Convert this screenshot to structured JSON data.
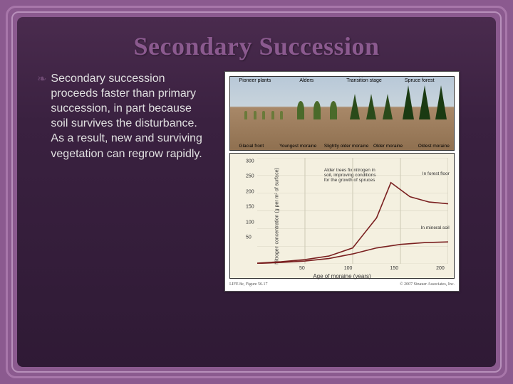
{
  "title": "Secondary Succession",
  "body_text": "Secondary succession proceeds faster than primary succession, in part because soil survives the disturbance. As a result, new and surviving vegetation can regrow rapidly.",
  "figure": {
    "top_panel": {
      "stages": [
        {
          "label": "Pioneer plants",
          "left_pct": 4
        },
        {
          "label": "Alders",
          "left_pct": 31
        },
        {
          "label": "Transition stage",
          "left_pct": 52
        },
        {
          "label": "Spruce forest",
          "left_pct": 78
        }
      ],
      "moraines": [
        {
          "label": "Glacial front",
          "left_pct": 4
        },
        {
          "label": "Youngest moraine",
          "left_pct": 22
        },
        {
          "label": "Slightly older moraine",
          "left_pct": 42
        },
        {
          "label": "Older moraine",
          "left_pct": 64
        },
        {
          "label": "Oldest moraine",
          "left_pct": 84
        }
      ]
    },
    "chart": {
      "type": "line",
      "y_label": "Nitrogen concentration (g per m² of surface)",
      "x_label": "Age of moraine (years)",
      "ylim": [
        0,
        300
      ],
      "y_ticks": [
        0,
        50,
        100,
        150,
        200,
        250,
        300
      ],
      "xlim": [
        0,
        200
      ],
      "x_ticks": [
        50,
        100,
        150,
        200
      ],
      "background_color": "#f4f0e0",
      "grid_color": "#d0ccb8",
      "line_color": "#7a2020",
      "line_width": 1.6,
      "series": [
        {
          "name": "forest_floor",
          "label": "In forest floor",
          "points": [
            [
              0,
              2
            ],
            [
              25,
              6
            ],
            [
              50,
              12
            ],
            [
              75,
              22
            ],
            [
              100,
              45
            ],
            [
              125,
              130
            ],
            [
              140,
              230
            ],
            [
              160,
              190
            ],
            [
              180,
              175
            ],
            [
              200,
              170
            ]
          ]
        },
        {
          "name": "mineral_soil",
          "label": "In mineral soil",
          "points": [
            [
              0,
              1
            ],
            [
              25,
              4
            ],
            [
              50,
              8
            ],
            [
              75,
              15
            ],
            [
              100,
              28
            ],
            [
              125,
              45
            ],
            [
              150,
              55
            ],
            [
              175,
              60
            ],
            [
              200,
              62
            ]
          ]
        }
      ],
      "annotation": "Alder trees fix nitrogen in soil, improving conditions for the growth of spruces"
    },
    "caption_left": "LIFE 8e, Figure 56.17",
    "caption_right": "© 2007 Sinauer Associates, Inc."
  }
}
